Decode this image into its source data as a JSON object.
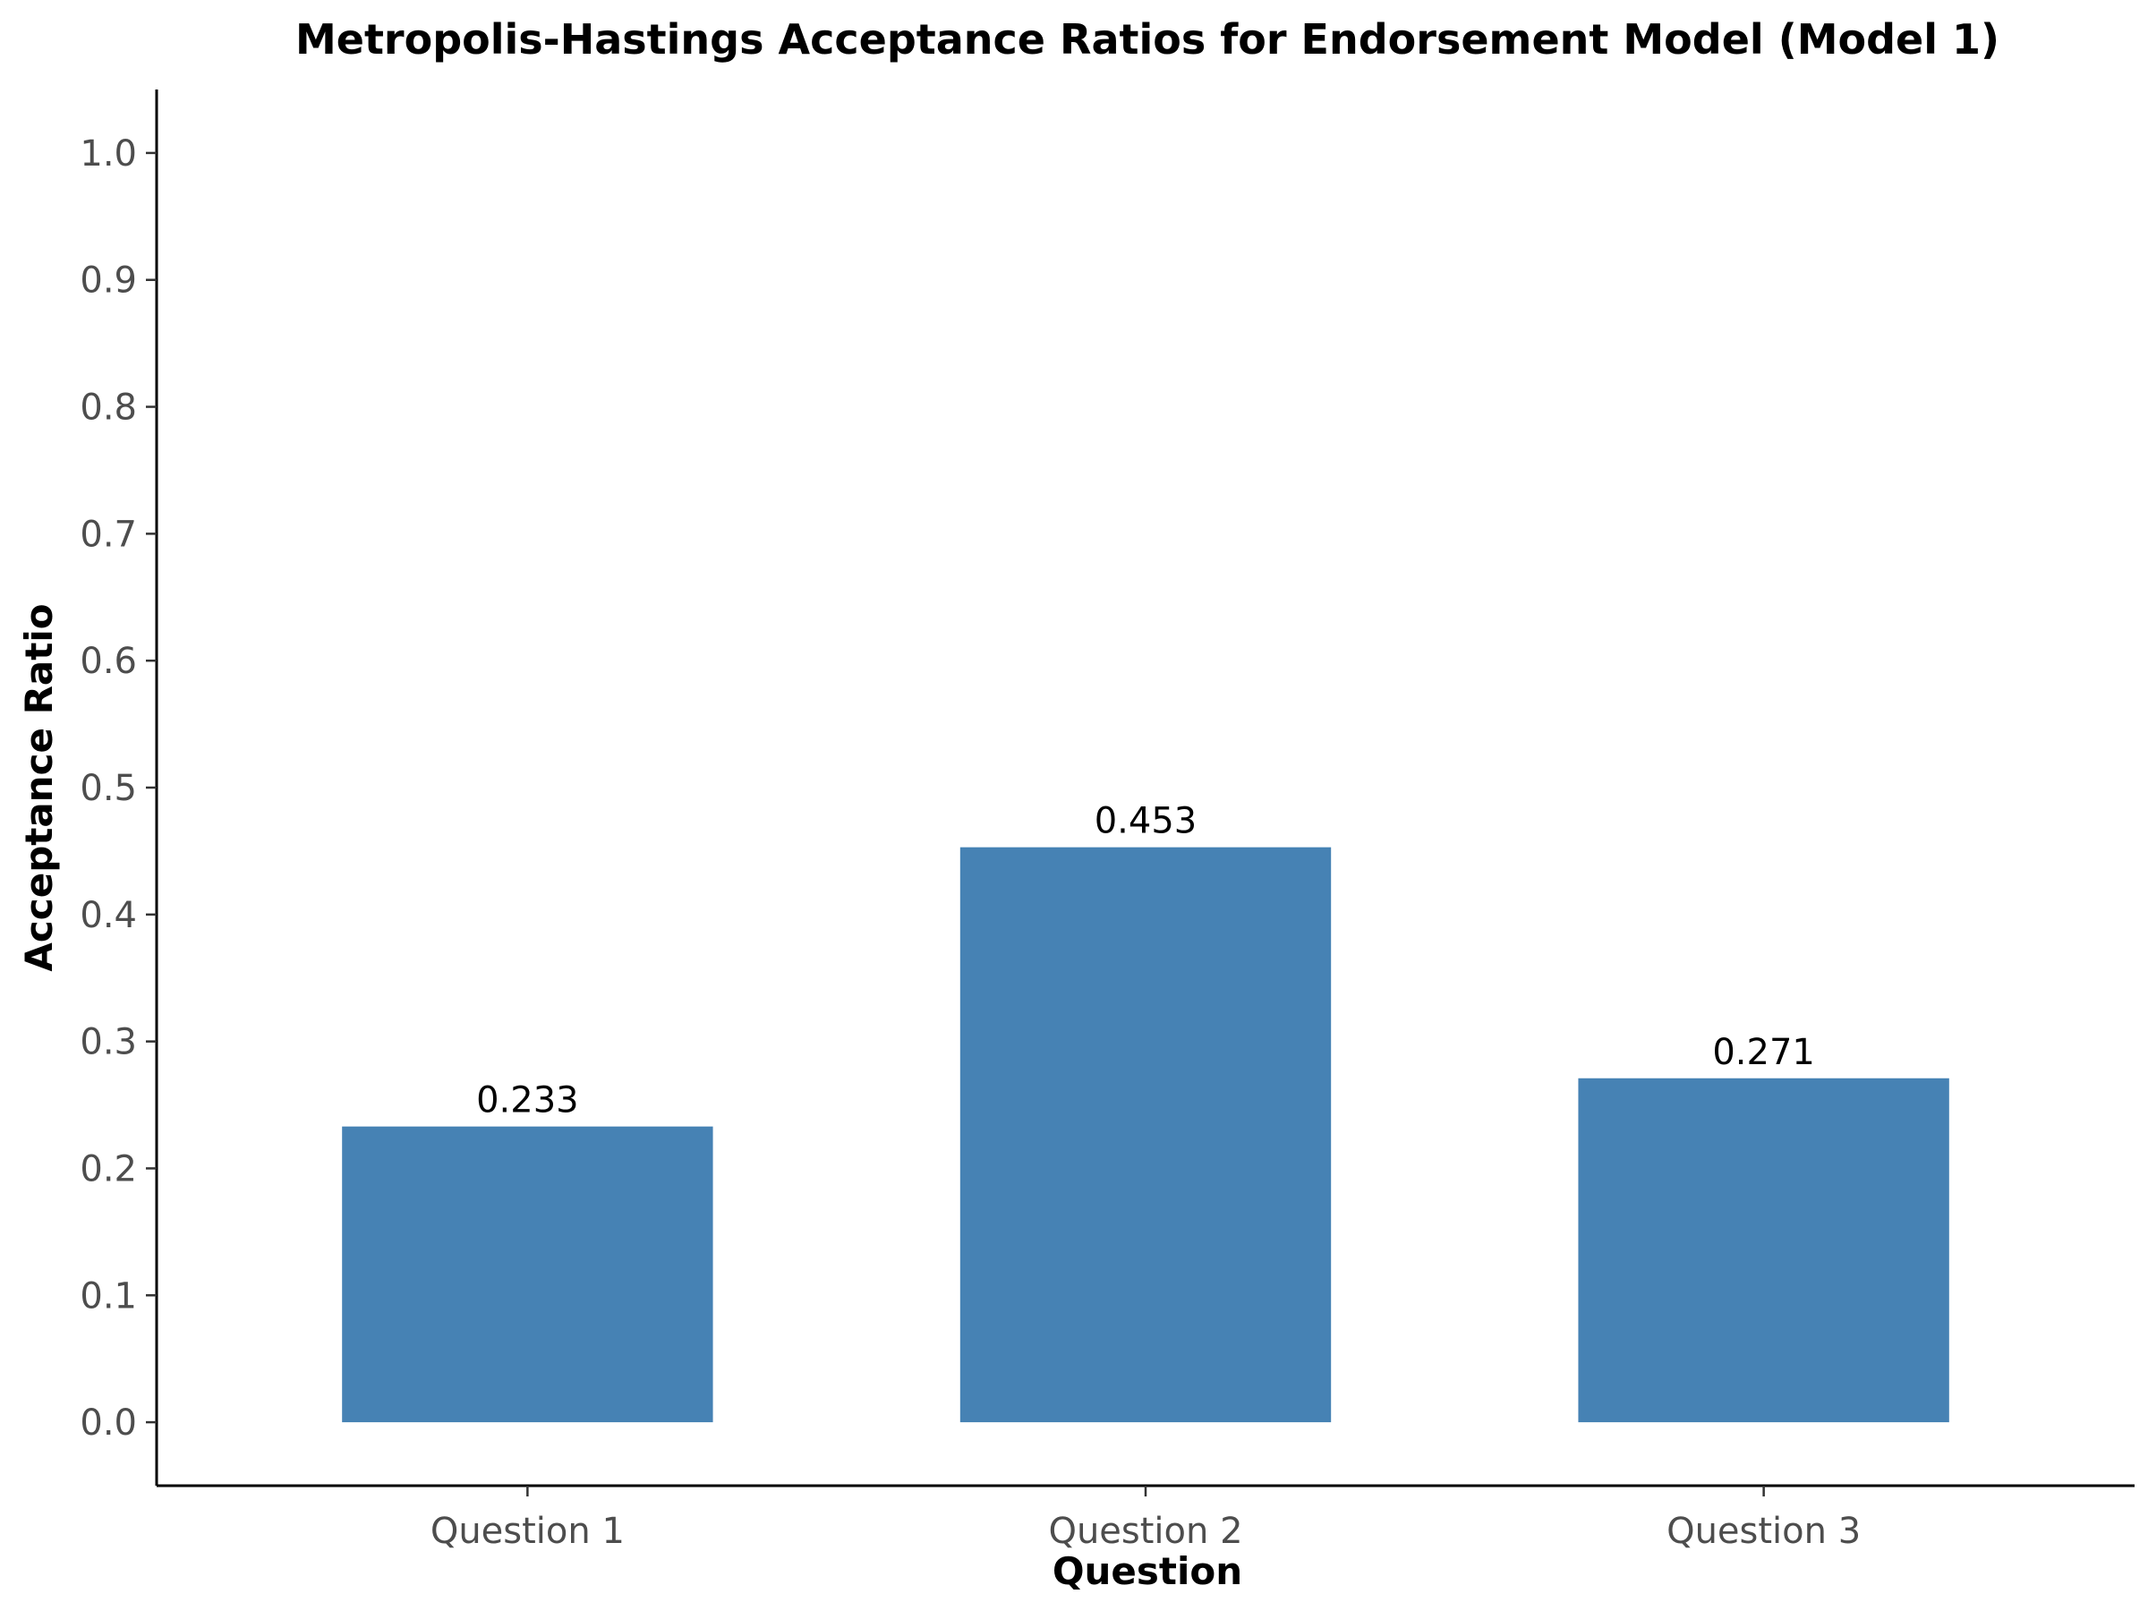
{
  "chart_data": {
    "type": "bar",
    "title": "Metropolis-Hastings Acceptance Ratios for Endorsement Model (Model 1)",
    "xlabel": "Question",
    "ylabel": "Acceptance Ratio",
    "categories": [
      "Question 1",
      "Question 2",
      "Question 3"
    ],
    "values": [
      0.233,
      0.453,
      0.271
    ],
    "data_labels": [
      "0.233",
      "0.453",
      "0.271"
    ],
    "ylim": [
      -0.05,
      1.05
    ],
    "yticks": [
      0.0,
      0.1,
      0.2,
      0.3,
      0.4,
      0.5,
      0.6,
      0.7,
      0.8,
      0.9,
      1.0
    ],
    "ytick_labels": [
      "0.0",
      "0.1",
      "0.2",
      "0.3",
      "0.4",
      "0.5",
      "0.6",
      "0.7",
      "0.8",
      "0.9",
      "1.0"
    ],
    "bar_color": "#4682b4",
    "grid": false,
    "legend": "none"
  }
}
